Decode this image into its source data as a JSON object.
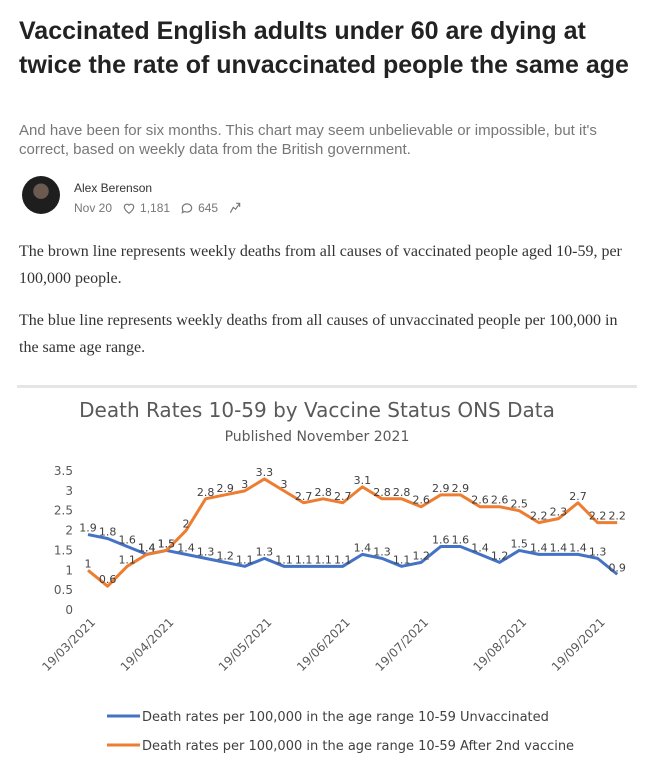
{
  "header": {
    "title": "Vaccinated English adults under 60 are dying at twice the rate of unvaccinated people the same age",
    "subtitle": "And have been for six months. This chart may seem unbelievable or impossible, but it's correct, based on weekly data from the British government.",
    "author": "Alex Berenson",
    "date": "Nov 20",
    "likes": "1,181",
    "comments": "645"
  },
  "paragraphs": [
    "The brown line represents weekly deaths from all causes of vaccinated people aged 10-59, per 100,000 people.",
    "The blue line represents weekly deaths from all causes of unvaccinated people per 100,000 in the same age range."
  ],
  "chart_data": {
    "type": "line",
    "title": "Death Rates 10-59  by Vaccine Status ONS Data",
    "subtitle": "Published November 2021",
    "categories": [
      "19/03/2021",
      null,
      null,
      null,
      "19/04/2021",
      null,
      null,
      null,
      null,
      "19/05/2021",
      null,
      null,
      null,
      "19/06/2021",
      null,
      null,
      null,
      "19/07/2021",
      null,
      null,
      null,
      null,
      "19/08/2021",
      null,
      null,
      null,
      "19/09/2021",
      null
    ],
    "ylim": [
      0,
      3.5
    ],
    "yticks": [
      0,
      0.5,
      1,
      1.5,
      2,
      2.5,
      3,
      3.5
    ],
    "grid": false,
    "legend": "bottom",
    "series": [
      {
        "name": "Death rates per 100,000 in the age range 10-59 Unvaccinated",
        "color": "#4472c4",
        "values": [
          1.9,
          1.8,
          1.6,
          1.4,
          1.5,
          1.4,
          1.3,
          1.2,
          1.1,
          1.3,
          1.1,
          1.1,
          1.1,
          1.1,
          1.4,
          1.3,
          1.1,
          1.2,
          1.6,
          1.6,
          1.4,
          1.2,
          1.5,
          1.4,
          1.4,
          1.4,
          1.3,
          0.9
        ]
      },
      {
        "name": "Death rates per 100,000 in the age range 10-59 After 2nd vaccine",
        "color": "#ed7d31",
        "values": [
          1,
          0.6,
          1.1,
          1.4,
          1.5,
          2,
          2.8,
          2.9,
          3,
          3.3,
          3,
          2.7,
          2.8,
          2.7,
          3.1,
          2.8,
          2.8,
          2.6,
          2.9,
          2.9,
          2.6,
          2.6,
          2.5,
          2.2,
          2.3,
          2.7,
          2.2,
          2.2
        ]
      }
    ]
  }
}
